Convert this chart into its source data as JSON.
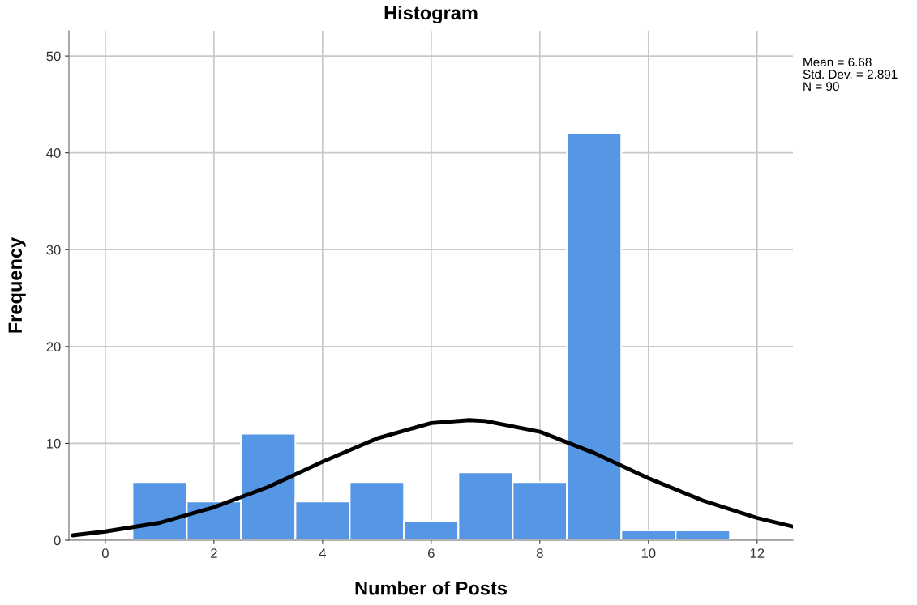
{
  "chart_data": {
    "type": "histogram",
    "title": "Histogram",
    "xlabel": "Number of Posts",
    "ylabel": "Frequency",
    "bins": [
      0.5,
      1.5,
      2.5,
      3.5,
      4.5,
      5.5,
      6.5,
      7.5,
      8.5,
      9.5,
      10.5,
      11.5
    ],
    "values": [
      6,
      4,
      11,
      4,
      6,
      2,
      7,
      6,
      42,
      1,
      1
    ],
    "color": "#5596e5",
    "series": [
      {
        "type": "line",
        "color": "#000000",
        "x": [
          -0.6,
          0,
          1,
          2,
          3,
          4,
          5,
          6,
          6.7,
          7,
          8,
          9,
          10,
          11,
          12,
          12.66
        ],
        "values": [
          0.5,
          0.9,
          1.8,
          3.4,
          5.5,
          8.1,
          10.5,
          12.1,
          12.4,
          12.3,
          11.2,
          9.0,
          6.4,
          4.1,
          2.3,
          1.4
        ]
      }
    ],
    "xlim": [
      -0.67,
      12.66
    ],
    "xticks": [
      0,
      2,
      4,
      6,
      8,
      10,
      12
    ],
    "ylim": [
      0,
      52.6
    ],
    "yticks": [
      0,
      10,
      20,
      30,
      40,
      50
    ],
    "grid": true,
    "annotations": [
      "Mean = 6.68",
      "Std. Dev. = 2.891",
      "N = 90"
    ]
  }
}
